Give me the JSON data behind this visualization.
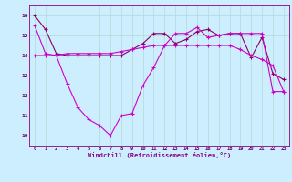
{
  "xlabel": "Windchill (Refroidissement éolien,°C)",
  "bg_color": "#cceeff",
  "grid_color": "#aaddcc",
  "line_color_bright": "#cc00cc",
  "line_color_dark": "#880066",
  "ylim": [
    9.5,
    16.5
  ],
  "xlim": [
    -0.5,
    23.5
  ],
  "yticks": [
    10,
    11,
    12,
    13,
    14,
    15,
    16
  ],
  "xticks": [
    0,
    1,
    2,
    3,
    4,
    5,
    6,
    7,
    8,
    9,
    10,
    11,
    12,
    13,
    14,
    15,
    16,
    17,
    18,
    19,
    20,
    21,
    22,
    23
  ],
  "series_top_x": [
    0,
    1,
    2,
    3,
    4,
    5,
    6,
    7,
    8,
    9,
    10,
    11,
    12,
    13,
    14,
    15,
    16,
    17,
    18,
    19,
    20,
    21,
    22,
    23
  ],
  "series_top_y": [
    16.0,
    15.3,
    14.1,
    14.0,
    14.0,
    14.0,
    14.0,
    14.0,
    14.0,
    14.3,
    14.6,
    15.1,
    15.1,
    14.6,
    14.8,
    15.2,
    15.3,
    15.0,
    15.1,
    15.1,
    13.9,
    14.9,
    13.1,
    12.8
  ],
  "series_mid_x": [
    0,
    1,
    2,
    3,
    4,
    5,
    6,
    7,
    8,
    9,
    10,
    11,
    12,
    13,
    14,
    15,
    16,
    17,
    18,
    19,
    20,
    21,
    22,
    23
  ],
  "series_mid_y": [
    14.0,
    14.0,
    14.0,
    14.1,
    14.1,
    14.1,
    14.1,
    14.1,
    14.2,
    14.3,
    14.4,
    14.5,
    14.5,
    14.5,
    14.5,
    14.5,
    14.5,
    14.5,
    14.5,
    14.3,
    14.0,
    13.8,
    13.5,
    12.2
  ],
  "series_bot_x": [
    0,
    1,
    2,
    3,
    4,
    5,
    6,
    7,
    8,
    9,
    10,
    11,
    12,
    13,
    14,
    15,
    16,
    17,
    18,
    19,
    20,
    21,
    22,
    23
  ],
  "series_bot_y": [
    15.5,
    14.1,
    14.0,
    12.6,
    11.4,
    10.8,
    10.5,
    10.0,
    11.0,
    11.1,
    12.5,
    13.4,
    14.5,
    15.1,
    15.1,
    15.4,
    14.9,
    15.0,
    15.1,
    15.1,
    15.1,
    15.1,
    12.2,
    12.2
  ]
}
